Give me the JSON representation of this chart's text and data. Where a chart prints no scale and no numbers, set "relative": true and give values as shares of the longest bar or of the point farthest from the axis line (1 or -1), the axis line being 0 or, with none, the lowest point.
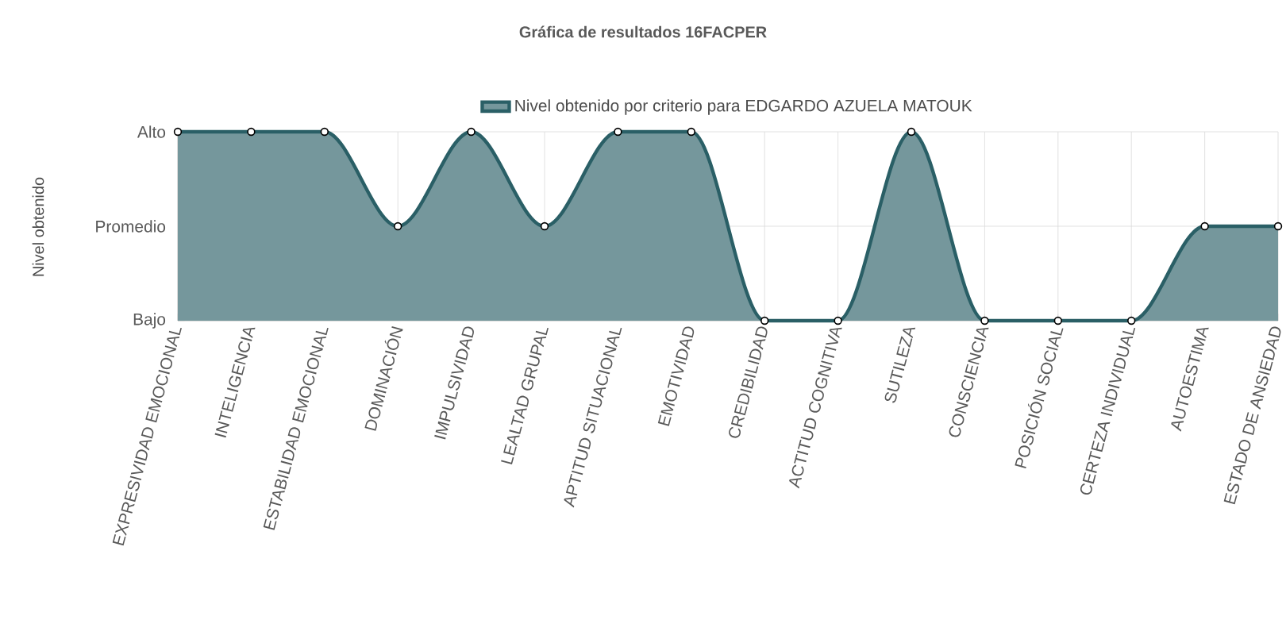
{
  "chart_data": {
    "type": "area",
    "title": "Gráfica de resultados 16FACPER",
    "ylabel": "Nivel obtenido",
    "categories": [
      "EXPRESIVIDAD EMOCIONAL",
      "INTELIGENCIA",
      "ESTABILIDAD EMOCIONAL",
      "DOMINACIÓN",
      "IMPULSIVIDAD",
      "LEALTAD GRUPAL",
      "APTITUD SITUACIONAL",
      "EMOTIVIDAD",
      "CREDIBILIDAD",
      "ACTITUD COGNITIVA",
      "SUTILEZA",
      "CONSCIENCIA",
      "POSICIÓN SOCIAL",
      "CERTEZA INDIVIDUAL",
      "AUTOESTIMA",
      "ESTADO DE ANSIEDAD"
    ],
    "series": [
      {
        "name": "Nivel obtenido por criterio para EDGARDO AZUELA MATOUK",
        "color": "#2a5f66",
        "values": [
          1,
          1,
          1,
          0.5,
          1,
          0.5,
          1,
          1,
          0,
          0,
          1,
          0,
          0,
          0,
          0.5,
          0.5
        ]
      }
    ],
    "relative": true,
    "annotations": [
      "Alto",
      "Promedio",
      "Bajo"
    ],
    "grid": true,
    "legend": "top",
    "marker": "circle"
  }
}
